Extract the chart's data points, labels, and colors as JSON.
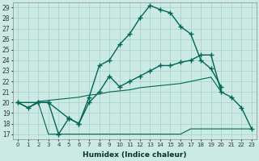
{
  "xlabel": "Humidex (Indice chaleur)",
  "bg_color": "#cceae4",
  "grid_color": "#aad4cc",
  "line_color": "#006655",
  "xlim": [
    -0.5,
    23.5
  ],
  "ylim": [
    16.5,
    29.5
  ],
  "xticks": [
    0,
    1,
    2,
    3,
    4,
    5,
    6,
    7,
    8,
    9,
    10,
    11,
    12,
    13,
    14,
    15,
    16,
    17,
    18,
    19,
    20,
    21,
    22,
    23
  ],
  "yticks": [
    17,
    18,
    19,
    20,
    21,
    22,
    23,
    24,
    25,
    26,
    27,
    28,
    29
  ],
  "line1_x": [
    0,
    1,
    2,
    3,
    4,
    5,
    6,
    7,
    8,
    9,
    10,
    11,
    12,
    13,
    14,
    15,
    16,
    17,
    18,
    19,
    20,
    21,
    22,
    23
  ],
  "line1_y": [
    20.0,
    19.5,
    20.0,
    20.0,
    17.0,
    18.5,
    18.0,
    20.5,
    23.5,
    24.0,
    25.5,
    26.5,
    28.0,
    29.2,
    28.8,
    28.5,
    27.2,
    26.5,
    24.0,
    23.2,
    21.5,
    null,
    null,
    null
  ],
  "line2_x": [
    0,
    2,
    3,
    5,
    6,
    7,
    8,
    9,
    10,
    11,
    12,
    13,
    14,
    15,
    16,
    17,
    18,
    19,
    20,
    21,
    22,
    23
  ],
  "line2_y": [
    20.0,
    20.0,
    20.0,
    18.5,
    18.0,
    20.0,
    21.0,
    22.5,
    21.5,
    22.0,
    22.5,
    23.0,
    23.5,
    23.5,
    23.8,
    24.0,
    24.5,
    24.5,
    21.0,
    20.5,
    19.5,
    17.5
  ],
  "line3_x": [
    0,
    1,
    2,
    3,
    4,
    5,
    6,
    7,
    8,
    9,
    10,
    11,
    12,
    13,
    14,
    15,
    16,
    17,
    18,
    19,
    20,
    21,
    22,
    23
  ],
  "line3_y": [
    20.0,
    19.5,
    20.1,
    20.2,
    20.3,
    20.4,
    20.5,
    20.7,
    20.8,
    21.0,
    21.1,
    21.2,
    21.4,
    21.5,
    21.6,
    21.7,
    21.8,
    22.0,
    22.2,
    22.4,
    21.0,
    null,
    null,
    null
  ],
  "line4_x": [
    0,
    1,
    2,
    3,
    4,
    5,
    6,
    7,
    8,
    9,
    10,
    11,
    12,
    13,
    14,
    15,
    16,
    17,
    18,
    19,
    20,
    21,
    22,
    23
  ],
  "line4_y": [
    20.0,
    19.5,
    20.0,
    17.0,
    17.0,
    17.0,
    17.0,
    17.0,
    17.0,
    17.0,
    17.0,
    17.0,
    17.0,
    17.0,
    17.0,
    17.0,
    17.0,
    17.5,
    17.5,
    17.5,
    17.5,
    17.5,
    17.5,
    17.5
  ]
}
